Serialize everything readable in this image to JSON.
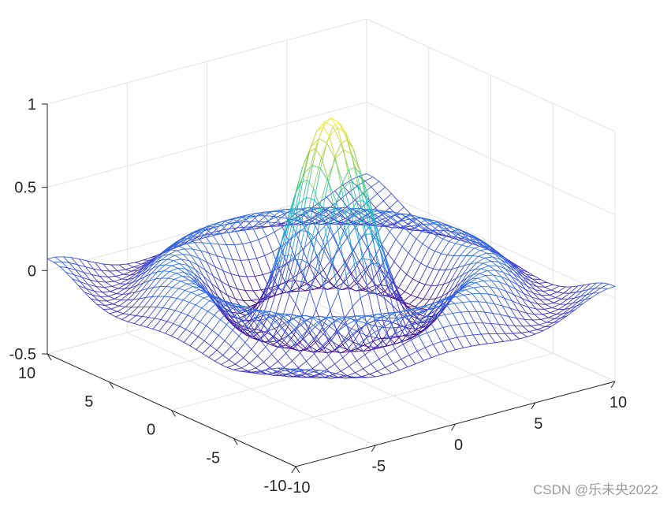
{
  "chart_data": {
    "type": "surface-mesh",
    "function": "z = sin(R)/R, R = sqrt(x^2 + y^2)",
    "x": {
      "ticks": [
        -10,
        -5,
        0,
        5,
        10
      ],
      "tick_labels": [
        "-10",
        "-5",
        "0",
        "5",
        "10"
      ],
      "lim": [
        -10,
        10
      ]
    },
    "y": {
      "ticks": [
        -10,
        -5,
        0,
        5,
        10
      ],
      "tick_labels": [
        "-10",
        "-5",
        "0",
        "5",
        "10"
      ],
      "lim": [
        -10,
        10
      ]
    },
    "z": {
      "ticks": [
        -0.5,
        0,
        0.5,
        1
      ],
      "tick_labels": [
        "-0.5",
        "0",
        "0.5",
        "1"
      ],
      "lim": [
        -0.5,
        1
      ]
    },
    "grid_step": 0.5,
    "colormap": [
      "#440a84",
      "#3f4ad8",
      "#2f86e6",
      "#19b9c9",
      "#47cf8c",
      "#b7cf3c",
      "#f9f21e"
    ],
    "grid": true,
    "title": "",
    "xlabel": "",
    "ylabel": "",
    "zlabel": ""
  },
  "watermark": "CSDN @乐未央2022"
}
